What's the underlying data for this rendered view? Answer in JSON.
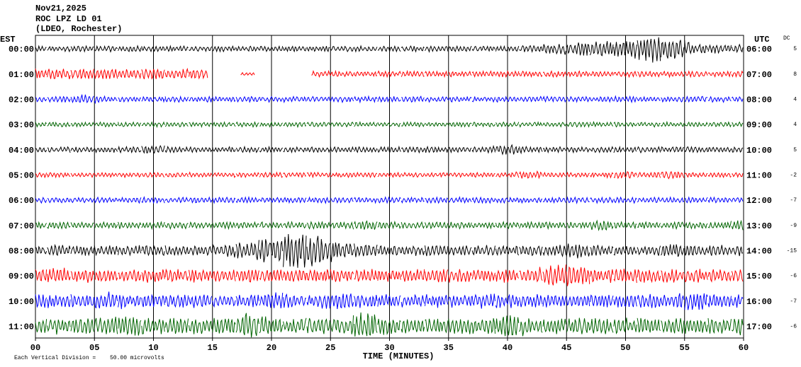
{
  "chart_data": {
    "type": "helicorder",
    "title": [
      "Nov21,2025",
      "ROC LPZ LD 01",
      "(LDEO, Rochester)"
    ],
    "left_label": "EST",
    "right_label": "UTC",
    "dc_label": "DC",
    "xlabel": "TIME (MINUTES)",
    "division_text": "Each Vertical Division =",
    "division": {
      "value": 50,
      "label": "50.00 microvolts"
    },
    "xlim": [
      0,
      60
    ],
    "xticks": [
      {
        "value": 0,
        "label": "00"
      },
      {
        "value": 5,
        "label": "05"
      },
      10,
      15,
      20,
      25,
      30,
      35,
      40,
      45,
      50,
      55,
      60
    ],
    "x": [
      0,
      2,
      4,
      6,
      8,
      10,
      12,
      14,
      16,
      18,
      20,
      22,
      24,
      26,
      28,
      30,
      32,
      34,
      36,
      38,
      40,
      42,
      44,
      46,
      48,
      50,
      52,
      54,
      56,
      58,
      60
    ],
    "series": [
      {
        "est": "00:00",
        "utc": "06:00",
        "dc": 5,
        "color": "#000000",
        "values": [
          6,
          6,
          6,
          6,
          6,
          6,
          6,
          6,
          6,
          6,
          6,
          6,
          6,
          6,
          6,
          6,
          6,
          6,
          6,
          6,
          6,
          8,
          11,
          14,
          20,
          17,
          31,
          26,
          11,
          9,
          9
        ]
      },
      {
        "est": "01:00",
        "utc": "07:00",
        "dc": 8,
        "color": "#ff0000",
        "values": [
          11,
          11,
          11,
          11,
          11,
          11,
          11,
          11,
          null,
          3,
          null,
          null,
          6,
          6,
          6,
          6,
          6,
          6,
          6,
          6,
          6,
          6,
          6,
          6,
          6,
          6,
          6,
          6,
          6,
          6,
          6
        ]
      },
      {
        "est": "02:00",
        "utc": "08:00",
        "dc": 4,
        "color": "#0000ff",
        "values": [
          6,
          6,
          10,
          6,
          6,
          6,
          6,
          6,
          6,
          6,
          6,
          6,
          6,
          6,
          6,
          6,
          6,
          6,
          6,
          6,
          6,
          6,
          6,
          6,
          6,
          6,
          6,
          6,
          6,
          6,
          6
        ]
      },
      {
        "est": "03:00",
        "utc": "09:00",
        "dc": 4,
        "color": "#006400",
        "values": [
          5,
          5,
          5,
          5,
          5,
          5,
          5,
          5,
          5,
          5,
          5,
          5,
          6,
          5,
          5,
          5,
          5,
          5,
          5,
          5,
          5,
          5,
          5,
          5,
          5,
          5,
          5,
          5,
          5,
          5,
          5
        ]
      },
      {
        "est": "04:00",
        "utc": "10:00",
        "dc": 5,
        "color": "#000000",
        "values": [
          6,
          6,
          6,
          6,
          6,
          11,
          6,
          6,
          6,
          6,
          6,
          6,
          6,
          6,
          6,
          6,
          6,
          6,
          6,
          6,
          11,
          6,
          6,
          6,
          6,
          6,
          6,
          6,
          6,
          6,
          6
        ]
      },
      {
        "est": "05:00",
        "utc": "11:00",
        "dc": -2,
        "color": "#ff0000",
        "values": [
          5,
          5,
          5,
          5,
          5,
          5,
          5,
          5,
          5,
          5,
          5,
          5,
          5,
          5,
          5,
          5,
          5,
          5,
          5,
          5,
          5,
          9,
          5,
          5,
          5,
          9,
          5,
          9,
          5,
          5,
          5
        ]
      },
      {
        "est": "06:00",
        "utc": "12:00",
        "dc": -7,
        "color": "#0000ff",
        "values": [
          6,
          6,
          6,
          6,
          6,
          6,
          6,
          6,
          6,
          6,
          6,
          6,
          6,
          6,
          6,
          6,
          6,
          6,
          6,
          6,
          6,
          6,
          6,
          6,
          6,
          6,
          6,
          6,
          6,
          6,
          6
        ]
      },
      {
        "est": "07:00",
        "utc": "13:00",
        "dc": -9,
        "color": "#006400",
        "values": [
          7,
          7,
          7,
          7,
          7,
          7,
          7,
          7,
          7,
          7,
          7,
          7,
          7,
          7,
          11,
          7,
          7,
          7,
          7,
          7,
          7,
          7,
          7,
          7,
          11,
          7,
          7,
          7,
          7,
          7,
          14
        ]
      },
      {
        "est": "08:00",
        "utc": "14:00",
        "dc": -15,
        "color": "#000000",
        "values": [
          11,
          11,
          11,
          11,
          11,
          11,
          11,
          11,
          11,
          20,
          29,
          39,
          34,
          17,
          14,
          11,
          11,
          11,
          11,
          11,
          11,
          11,
          11,
          17,
          11,
          11,
          11,
          17,
          11,
          11,
          11
        ]
      },
      {
        "est": "09:00",
        "utc": "15:00",
        "dc": -6,
        "color": "#ff0000",
        "values": [
          14,
          17,
          14,
          14,
          14,
          14,
          14,
          14,
          14,
          14,
          14,
          14,
          14,
          14,
          14,
          14,
          14,
          14,
          14,
          14,
          14,
          14,
          26,
          23,
          14,
          17,
          14,
          14,
          14,
          14,
          14
        ]
      },
      {
        "est": "10:00",
        "utc": "16:00",
        "dc": -7,
        "color": "#0000ff",
        "values": [
          14,
          14,
          14,
          20,
          14,
          14,
          14,
          14,
          14,
          14,
          20,
          14,
          14,
          23,
          14,
          14,
          14,
          14,
          14,
          17,
          14,
          14,
          14,
          14,
          14,
          14,
          14,
          14,
          23,
          14,
          14
        ]
      },
      {
        "est": "11:00",
        "utc": "17:00",
        "dc": -6,
        "color": "#006400",
        "values": [
          17,
          17,
          17,
          17,
          23,
          17,
          17,
          17,
          17,
          29,
          17,
          17,
          17,
          17,
          31,
          17,
          17,
          17,
          17,
          17,
          26,
          17,
          17,
          17,
          17,
          17,
          17,
          17,
          17,
          17,
          23
        ]
      }
    ]
  }
}
